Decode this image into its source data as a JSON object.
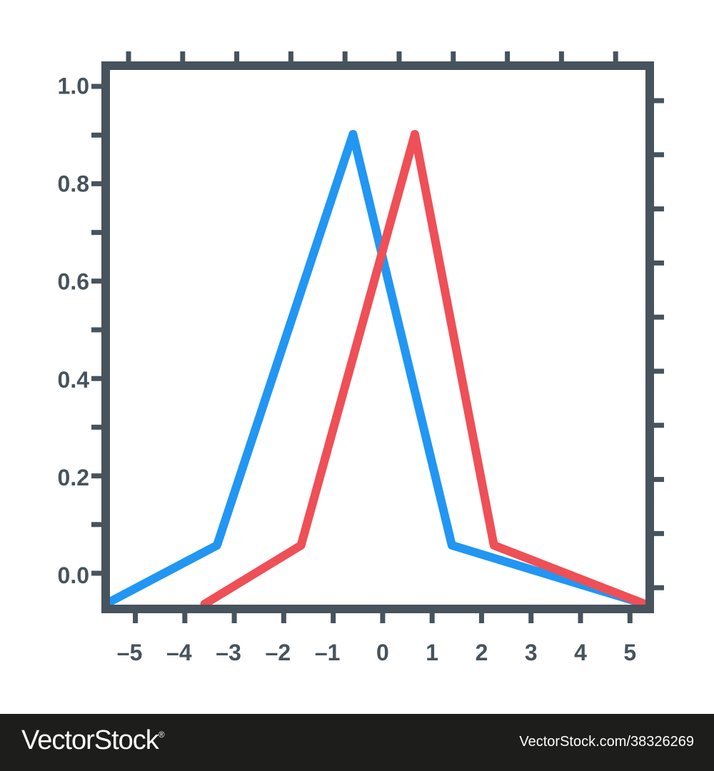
{
  "chart_data": {
    "type": "line",
    "title": "",
    "xlabel": "",
    "ylabel": "",
    "x_ticks": [
      "-5",
      "-4",
      "-3",
      "-2",
      "-1",
      "0",
      "1",
      "2",
      "3",
      "4",
      "5"
    ],
    "y_ticks": [
      "0.0",
      "0.2",
      "0.4",
      "0.6",
      "0.8",
      "1.0"
    ],
    "xlim": [
      -5.6,
      5.4
    ],
    "ylim": [
      -0.07,
      1.04
    ],
    "grid": false,
    "series": [
      {
        "color": "#2196f3",
        "points": [
          [
            -5.6,
            -0.06
          ],
          [
            -3.35,
            0.06
          ],
          [
            -0.6,
            0.9
          ],
          [
            1.4,
            0.06
          ],
          [
            5.3,
            -0.06
          ]
        ]
      },
      {
        "color": "#ef4f56",
        "points": [
          [
            -3.6,
            -0.06
          ],
          [
            -1.65,
            0.06
          ],
          [
            0.65,
            0.9
          ],
          [
            2.25,
            0.06
          ],
          [
            5.3,
            -0.06
          ]
        ]
      }
    ]
  },
  "colors": {
    "axis": "#47535d",
    "watermark_bg": "#1d1d1b"
  },
  "watermark": {
    "logo": "VectorStock",
    "registered": "®",
    "url": "VectorStock.com/38326269"
  }
}
